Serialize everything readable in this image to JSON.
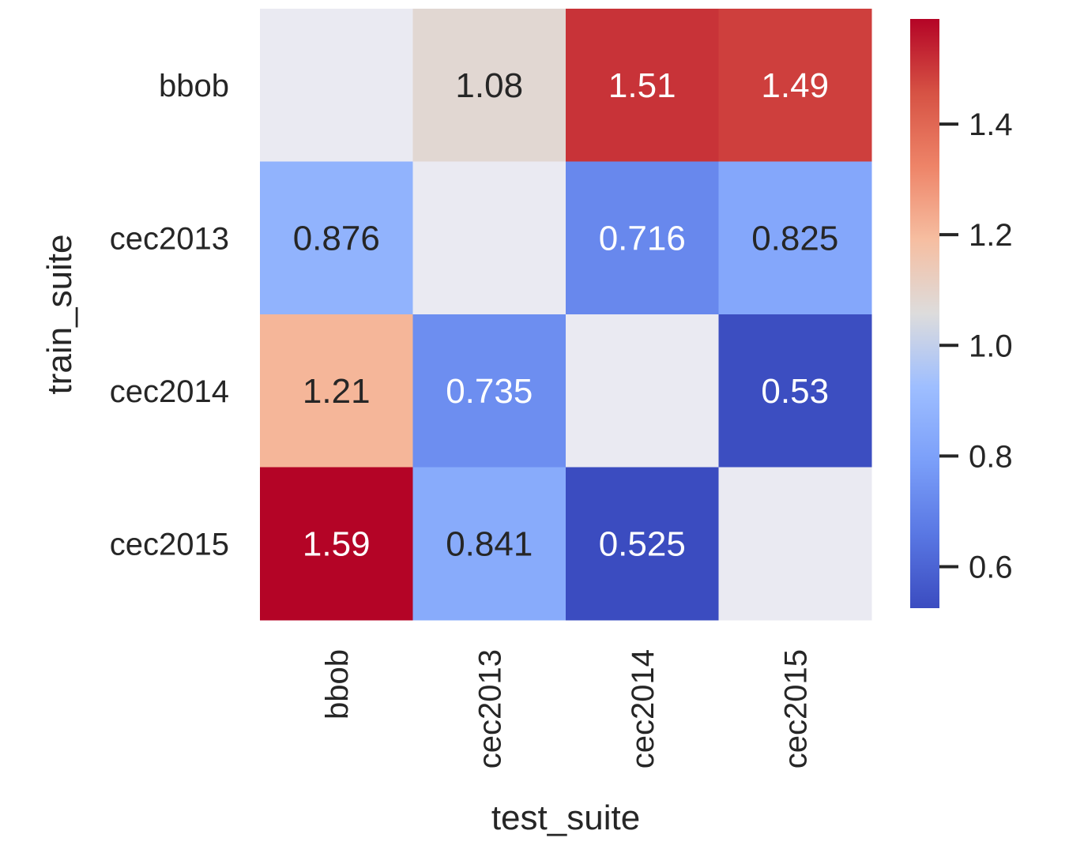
{
  "chart_data": {
    "type": "heatmap",
    "title": "",
    "xlabel": "test_suite",
    "ylabel": "train_suite",
    "x_categories": [
      "bbob",
      "cec2013",
      "cec2014",
      "cec2015"
    ],
    "y_categories": [
      "bbob",
      "cec2013",
      "cec2014",
      "cec2015"
    ],
    "values": [
      [
        null,
        1.08,
        1.51,
        1.49
      ],
      [
        0.876,
        null,
        0.716,
        0.825
      ],
      [
        1.21,
        0.735,
        null,
        0.53
      ],
      [
        1.59,
        0.841,
        0.525,
        null
      ]
    ],
    "cell_labels": [
      [
        "",
        "1.08",
        "1.51",
        "1.49"
      ],
      [
        "0.876",
        "",
        "0.716",
        "0.825"
      ],
      [
        "1.21",
        "0.735",
        "",
        "0.53"
      ],
      [
        "1.59",
        "0.841",
        "0.525",
        ""
      ]
    ],
    "missing_color": "#eaeaf2",
    "colormap": "coolwarm",
    "vmin": 0.525,
    "vmax": 1.59,
    "colorbar": {
      "ticks": [
        0.6,
        0.8,
        1.0,
        1.2,
        1.4
      ],
      "tick_labels": [
        "0.6",
        "0.8",
        "1.0",
        "1.2",
        "1.4"
      ],
      "placement": "right"
    },
    "text_colors": {
      "dark": "#262626",
      "light": "#ffffff"
    }
  }
}
